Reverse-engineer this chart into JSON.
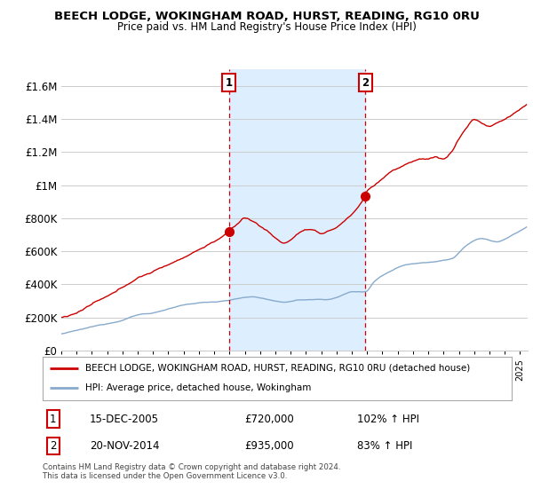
{
  "title": "BEECH LODGE, WOKINGHAM ROAD, HURST, READING, RG10 0RU",
  "subtitle": "Price paid vs. HM Land Registry's House Price Index (HPI)",
  "ylim": [
    0,
    1700000
  ],
  "yticks": [
    0,
    200000,
    400000,
    600000,
    800000,
    1000000,
    1200000,
    1400000,
    1600000
  ],
  "ytick_labels": [
    "£0",
    "£200K",
    "£400K",
    "£600K",
    "£800K",
    "£1M",
    "£1.2M",
    "£1.4M",
    "£1.6M"
  ],
  "xlim_start": 1995.0,
  "xlim_end": 2025.5,
  "sale1_date": 2005.96,
  "sale1_price": 720000,
  "sale1_label": "1",
  "sale2_date": 2014.89,
  "sale2_price": 935000,
  "sale2_label": "2",
  "property_color": "#cc0000",
  "hpi_color": "#88aacc",
  "shade_color": "#ddeeff",
  "legend_property": "BEECH LODGE, WOKINGHAM ROAD, HURST, READING, RG10 0RU (detached house)",
  "legend_hpi": "HPI: Average price, detached house, Wokingham",
  "annotation1": "15-DEC-2005",
  "annotation1_price": "£720,000",
  "annotation1_hpi": "102% ↑ HPI",
  "annotation2": "20-NOV-2014",
  "annotation2_price": "£935,000",
  "annotation2_hpi": "83% ↑ HPI",
  "footer": "Contains HM Land Registry data © Crown copyright and database right 2024.\nThis data is licensed under the Open Government Licence v3.0.",
  "background_color": "#ffffff",
  "grid_color": "#cccccc"
}
